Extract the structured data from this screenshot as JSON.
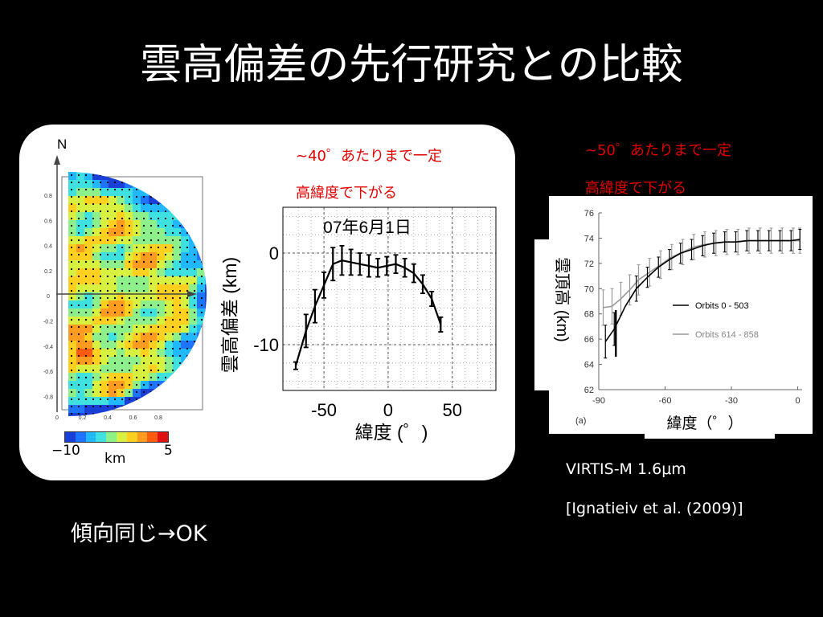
{
  "slide": {
    "title": "雲高偏差の先行研究との比較",
    "conclusion": "傾向同じ→OK"
  },
  "map": {
    "north_label": "N",
    "colorbar": {
      "min_label": "−10",
      "max_label": "5",
      "unit": "km",
      "colors": [
        "#1a3fd6",
        "#1e74ff",
        "#22b8ff",
        "#3fe0e0",
        "#8ef08a",
        "#d8f040",
        "#ffd020",
        "#ff9b20",
        "#ff5a10",
        "#e01010"
      ]
    },
    "y_ticks": [
      "0.8",
      "0.6",
      "0.4",
      "0.2",
      "0",
      "-0.2",
      "-0.4",
      "-0.6",
      "-0.8"
    ],
    "x_ticks": [
      "0",
      "0.2",
      "0.4",
      "0.6",
      "0.8"
    ]
  },
  "annotations": {
    "left_line1": "~40゜あたりまで一定",
    "left_line2": "高緯度で下がる",
    "right_line1": "~50゜あたりまで一定",
    "right_line2": "高緯度で下がる"
  },
  "reference": {
    "instrument": "VIRTIS-M 1.6μm",
    "citation": "[Ignatieiv et al. (2009)]"
  },
  "chart_data": [
    {
      "type": "line",
      "title": "07年6月1日",
      "xlabel": "緯度 (゜)",
      "ylabel": "雲高偏差 (km)",
      "xlim": [
        -82,
        84
      ],
      "ylim": [
        -15,
        5
      ],
      "x_ticks": [
        "-50",
        "0",
        "50"
      ],
      "y_ticks": [
        "0",
        "-10"
      ],
      "grid": true,
      "series": [
        {
          "x": [
            -72,
            -64,
            -57,
            -50,
            -43,
            -36,
            -29,
            -22,
            -15,
            -8,
            -1,
            6,
            13,
            20,
            27,
            34,
            41
          ],
          "y": [
            -12.3,
            -8.5,
            -5.8,
            -3.5,
            -1.2,
            -0.8,
            -1.0,
            -1.2,
            -1.4,
            -1.6,
            -1.4,
            -1.2,
            -1.6,
            -2.2,
            -3.4,
            -5.0,
            -7.8
          ],
          "err": [
            0.4,
            1.8,
            1.8,
            1.4,
            1.8,
            1.6,
            1.4,
            1.2,
            1.2,
            1.0,
            1.0,
            1.0,
            1.0,
            1.0,
            1.0,
            0.8,
            0.8
          ]
        }
      ]
    },
    {
      "type": "line",
      "xlabel": "緯度（゜）",
      "ylabel": "雲頂高 (km)",
      "panel_label": "(a)",
      "xlim": [
        -90,
        2
      ],
      "ylim": [
        62,
        76
      ],
      "x_ticks": [
        "-90",
        "-60",
        "-30",
        "0"
      ],
      "y_ticks": [
        "62",
        "64",
        "66",
        "68",
        "70",
        "72",
        "74",
        "76"
      ],
      "series": [
        {
          "name": "Orbits 0 - 503",
          "color": "#000000",
          "x": [
            -87,
            -83,
            -78,
            -73,
            -68,
            -63,
            -58,
            -53,
            -48,
            -43,
            -38,
            -33,
            -28,
            -23,
            -18,
            -13,
            -8,
            -3,
            1
          ],
          "y": [
            65.8,
            66.8,
            68.6,
            70.0,
            70.9,
            71.7,
            72.3,
            72.8,
            73.1,
            73.4,
            73.6,
            73.7,
            73.7,
            73.8,
            73.8,
            73.8,
            73.8,
            73.8,
            73.9
          ],
          "err": [
            1.3,
            1.3,
            0,
            1.0,
            0.8,
            0.8,
            0.8,
            0.8,
            0.8,
            0.8,
            0.8,
            0.8,
            0.8,
            0.8,
            0.8,
            0.8,
            0.8,
            0.8,
            0.8
          ]
        },
        {
          "name": "Orbits 614 - 858",
          "color": "#999999",
          "x": [
            -88,
            -84,
            -80,
            -76,
            -72,
            -67,
            -62,
            -57,
            -52,
            -47,
            -42,
            -37,
            -32,
            -27,
            -22,
            -17,
            -12,
            -7,
            -2,
            1
          ],
          "y": [
            68.5,
            68.6,
            69.2,
            69.9,
            70.7,
            71.3,
            71.9,
            72.5,
            72.9,
            73.3,
            73.5,
            73.6,
            73.7,
            73.7,
            73.8,
            73.8,
            73.8,
            73.8,
            73.8,
            73.8
          ],
          "err": [
            1.4,
            1.4,
            1.3,
            1.2,
            1.2,
            1.1,
            1.1,
            1.0,
            1.0,
            1.0,
            1.0,
            1.0,
            1.0,
            1.0,
            1.0,
            1.0,
            1.0,
            1.0,
            1.0,
            1.0
          ]
        }
      ]
    }
  ]
}
